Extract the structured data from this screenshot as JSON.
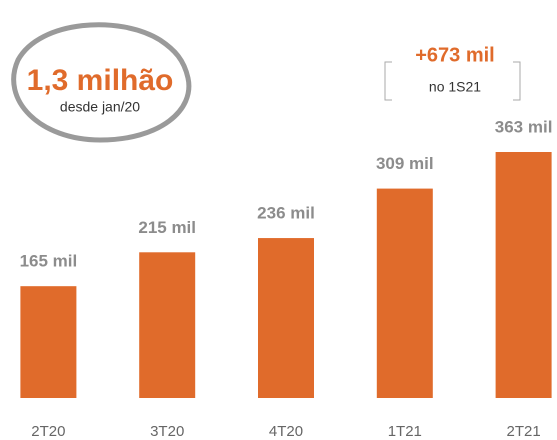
{
  "chart_data": {
    "type": "bar",
    "categories": [
      "2T20",
      "3T20",
      "4T20",
      "1T21",
      "2T21"
    ],
    "values": [
      165,
      215,
      236,
      309,
      363
    ],
    "value_labels": [
      "165 mil",
      "215 mil",
      "236 mil",
      "309 mil",
      "363 mil"
    ],
    "color": "#e06b2b",
    "annotations": [
      {
        "text": "1,3 milhão",
        "subtext": "desde jan/20"
      },
      {
        "text": "+673 mil",
        "subtext": "no 1S21"
      }
    ]
  }
}
